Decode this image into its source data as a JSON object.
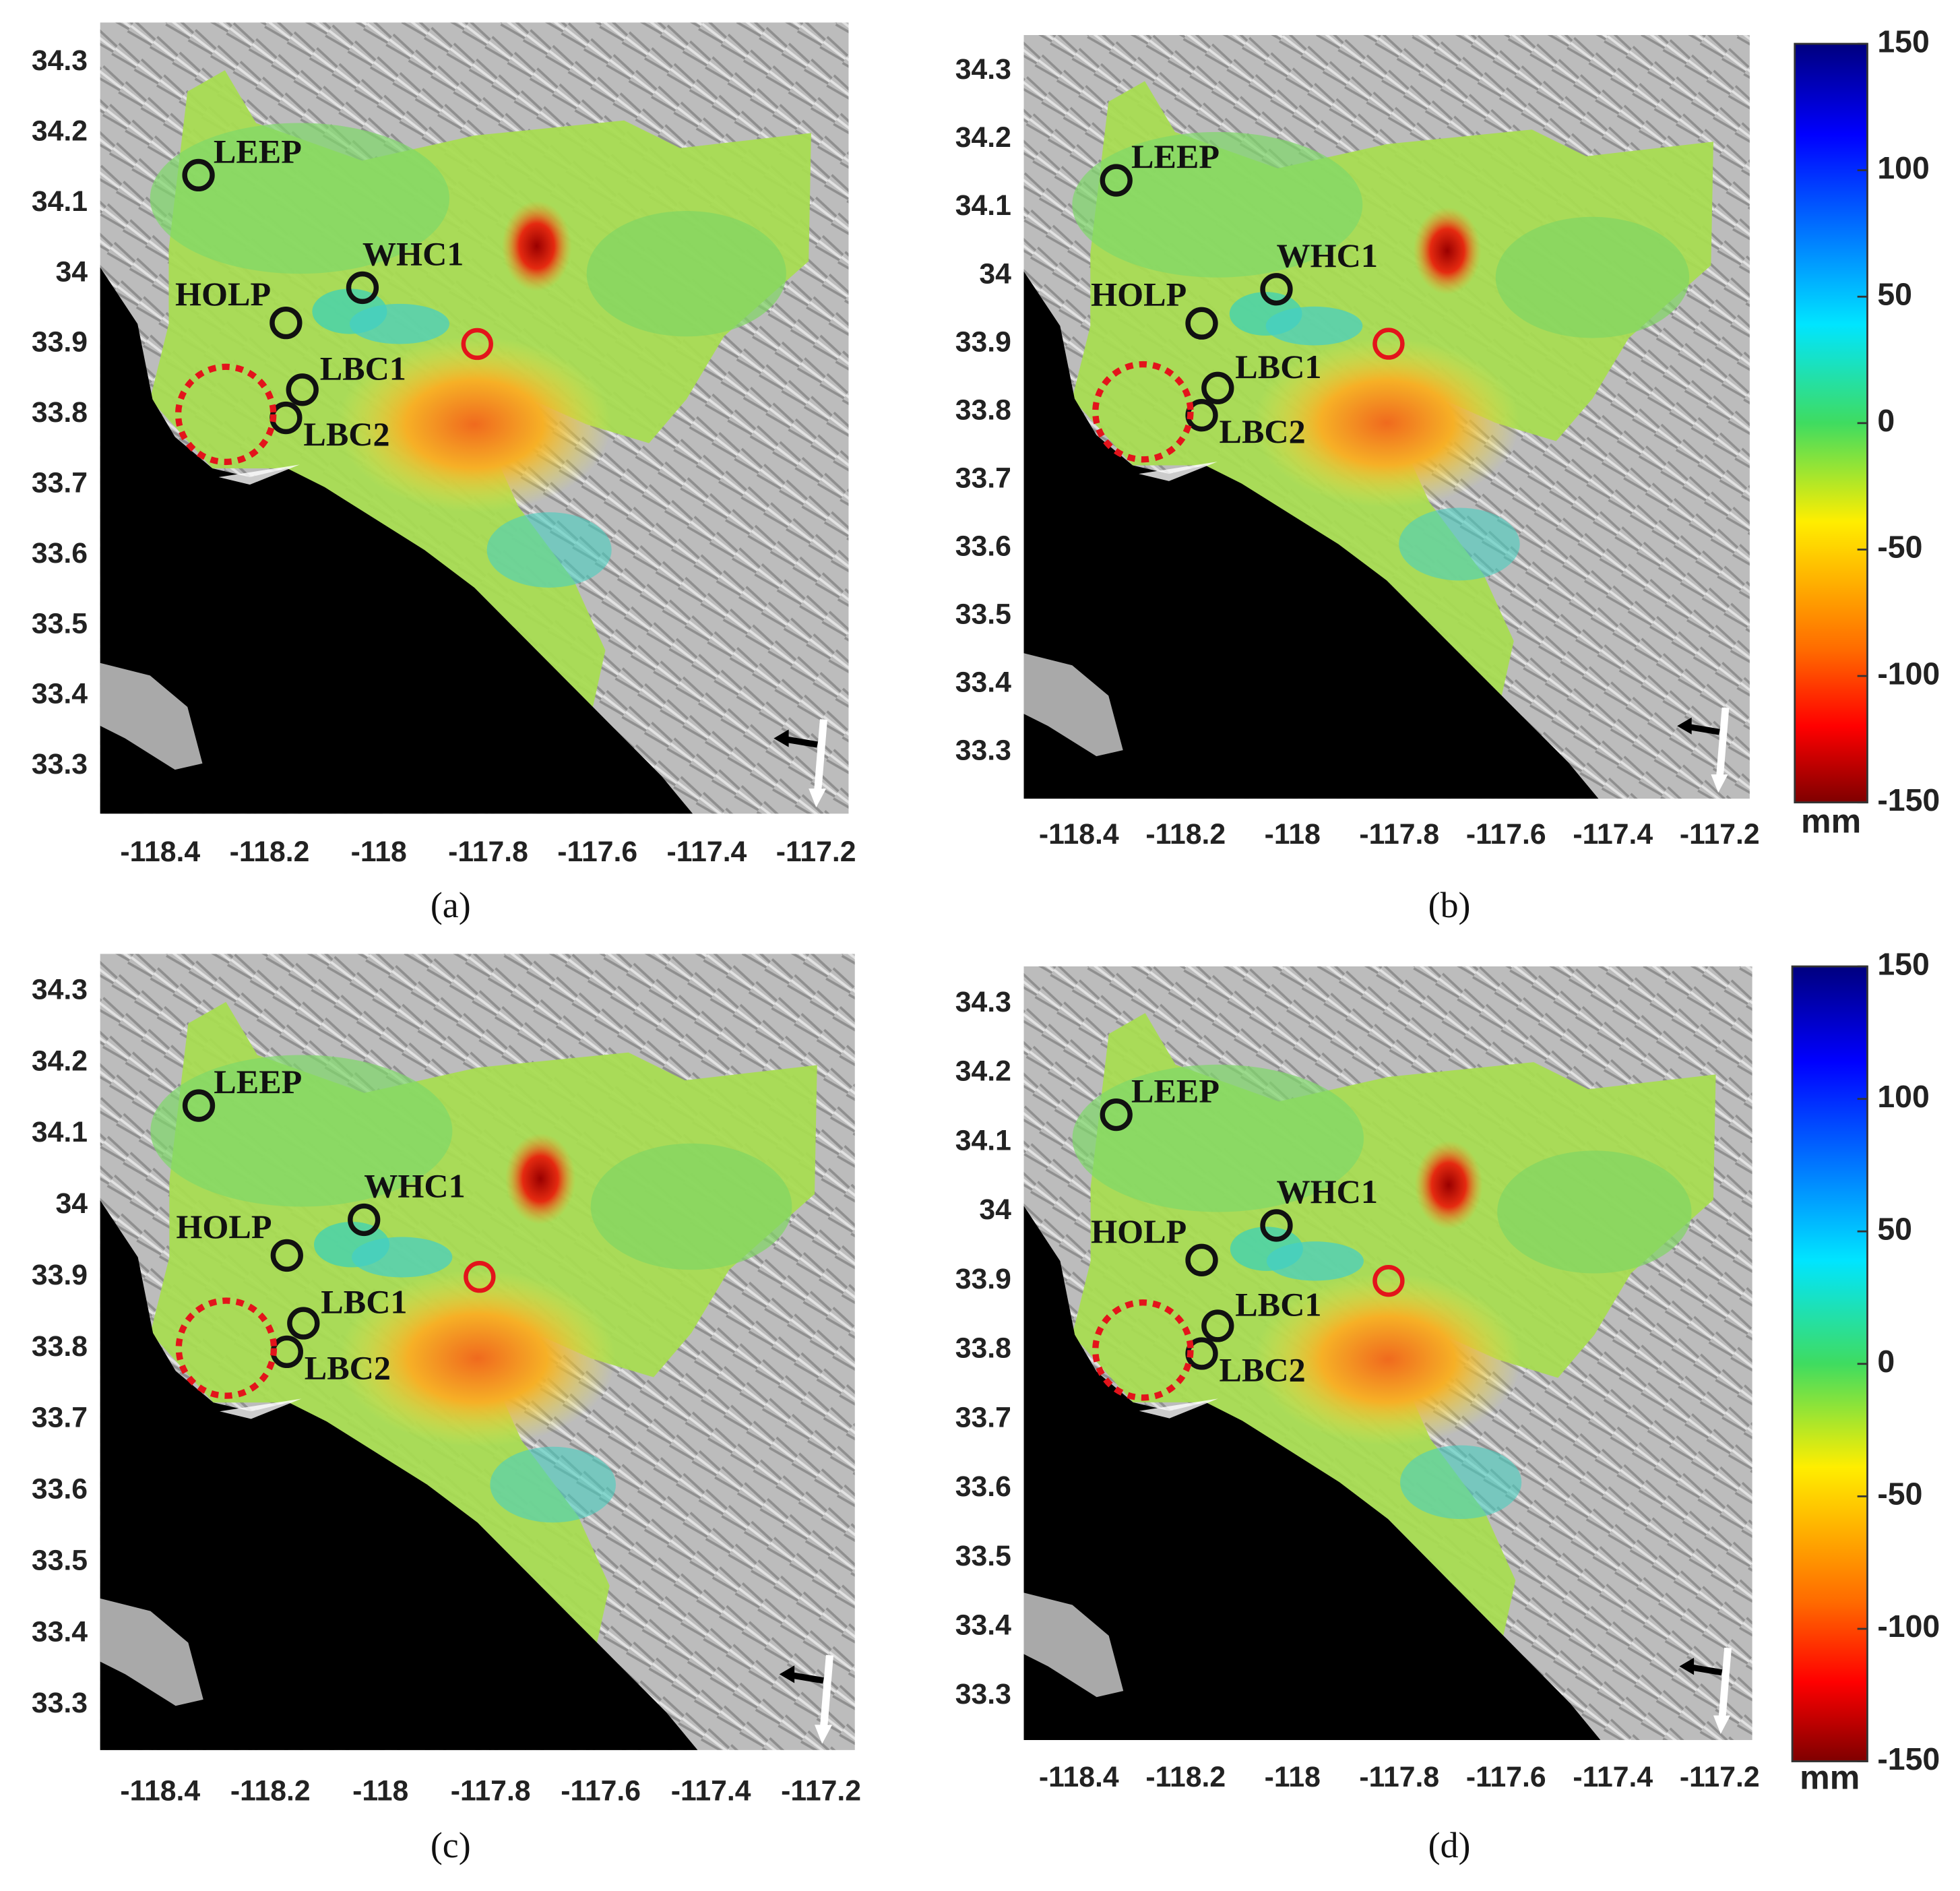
{
  "panels": [
    {
      "label": "(a)",
      "xticks": [
        -118.4,
        -118.2,
        -118,
        -117.8,
        -117.6,
        -117.4,
        -117.2
      ],
      "yticks": [
        34.3,
        34.2,
        34.1,
        34,
        33.9,
        33.8,
        33.7,
        33.6,
        33.5,
        33.4,
        33.3
      ],
      "stations": [
        "LEEP",
        "WHC1",
        "HOLP",
        "LBC1",
        "LBC2"
      ]
    },
    {
      "label": "(b)",
      "xticks": [
        -118.4,
        -118.2,
        -118,
        -117.8,
        -117.6,
        -117.4,
        -117.2
      ],
      "yticks": [
        34.3,
        34.2,
        34.1,
        34,
        33.9,
        33.8,
        33.7,
        33.6,
        33.5,
        33.4,
        33.3
      ],
      "stations": [
        "LEEP",
        "WHC1",
        "HOLP",
        "LBC1",
        "LBC2"
      ]
    },
    {
      "label": "(c)",
      "xticks": [
        -118.4,
        -118.2,
        -118,
        -117.8,
        -117.6,
        -117.4,
        -117.2
      ],
      "yticks": [
        34.3,
        34.2,
        34.1,
        34,
        33.9,
        33.8,
        33.7,
        33.6,
        33.5,
        33.4,
        33.3
      ],
      "stations": [
        "LEEP",
        "WHC1",
        "HOLP",
        "LBC1",
        "LBC2"
      ]
    },
    {
      "label": "(d)",
      "xticks": [
        -118.4,
        -118.2,
        -118,
        -117.8,
        -117.6,
        -117.4,
        -117.2
      ],
      "yticks": [
        34.3,
        34.2,
        34.1,
        34,
        33.9,
        33.8,
        33.7,
        33.6,
        33.5,
        33.4,
        33.3
      ],
      "stations": [
        "LEEP",
        "WHC1",
        "HOLP",
        "LBC1",
        "LBC2"
      ]
    }
  ],
  "colorbars": [
    {
      "ticks": [
        150,
        100,
        50,
        0,
        -50,
        -100,
        -150
      ],
      "unit": "mm"
    },
    {
      "ticks": [
        150,
        100,
        50,
        0,
        -50,
        -100,
        -150
      ],
      "unit": "mm"
    }
  ]
}
